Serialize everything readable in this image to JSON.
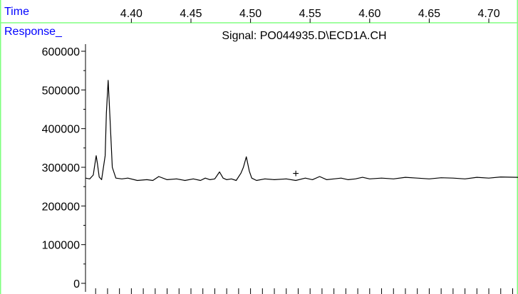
{
  "chart_data": {
    "type": "line",
    "title": "Signal: PO044935.D\\ECD1A.CH",
    "xlabel": "Time",
    "ylabel": "Response_",
    "x_ticks": [
      "4.40",
      "4.45",
      "4.50",
      "4.55",
      "4.60",
      "4.65",
      "4.70"
    ],
    "x_tick_values": [
      4.4,
      4.45,
      4.5,
      4.55,
      4.6,
      4.65,
      4.7
    ],
    "y_ticks": [
      "0",
      "100000",
      "200000",
      "300000",
      "400000",
      "500000",
      "600000"
    ],
    "y_tick_values": [
      0,
      100000,
      200000,
      300000,
      400000,
      500000,
      600000
    ],
    "xlim": [
      4.3615,
      4.7245
    ],
    "ylim": [
      0,
      600000
    ],
    "grid": false,
    "marker": "+",
    "marker_point": [
      4.538,
      285000
    ],
    "series": [
      {
        "x": [
          4.3615,
          4.365,
          4.368,
          4.369,
          4.3705,
          4.3715,
          4.373,
          4.375,
          4.378,
          4.379,
          4.3805,
          4.382,
          4.384,
          4.387,
          4.392,
          4.397,
          4.405,
          4.413,
          4.418,
          4.423,
          4.43,
          4.438,
          4.445,
          4.452,
          4.458,
          4.462,
          4.466,
          4.47,
          4.474,
          4.477,
          4.48,
          4.484,
          4.488,
          4.492,
          4.494,
          4.4965,
          4.499,
          4.501,
          4.505,
          4.512,
          4.52,
          4.53,
          4.538,
          4.546,
          4.552,
          4.558,
          4.564,
          4.57,
          4.576,
          4.582,
          4.588,
          4.594,
          4.6,
          4.61,
          4.62,
          4.63,
          4.64,
          4.65,
          4.66,
          4.67,
          4.68,
          4.69,
          4.7,
          4.71,
          4.7245
        ],
        "y": [
          272000,
          270000,
          280000,
          300000,
          330000,
          310000,
          275000,
          268000,
          330000,
          440000,
          525000,
          430000,
          300000,
          272000,
          270000,
          272000,
          266000,
          268000,
          266000,
          276000,
          268000,
          270000,
          266000,
          270000,
          266000,
          272000,
          268000,
          270000,
          288000,
          272000,
          268000,
          270000,
          266000,
          285000,
          300000,
          327000,
          290000,
          272000,
          266000,
          270000,
          268000,
          270000,
          266000,
          272000,
          268000,
          276000,
          268000,
          270000,
          272000,
          268000,
          270000,
          274000,
          270000,
          272000,
          270000,
          274000,
          272000,
          270000,
          273000,
          272000,
          270000,
          274000,
          272000,
          275000,
          274000
        ]
      }
    ]
  },
  "colors": {
    "label": "#0000ff",
    "border": "#80ff80",
    "trace": "#000000",
    "axis": "#000000"
  }
}
